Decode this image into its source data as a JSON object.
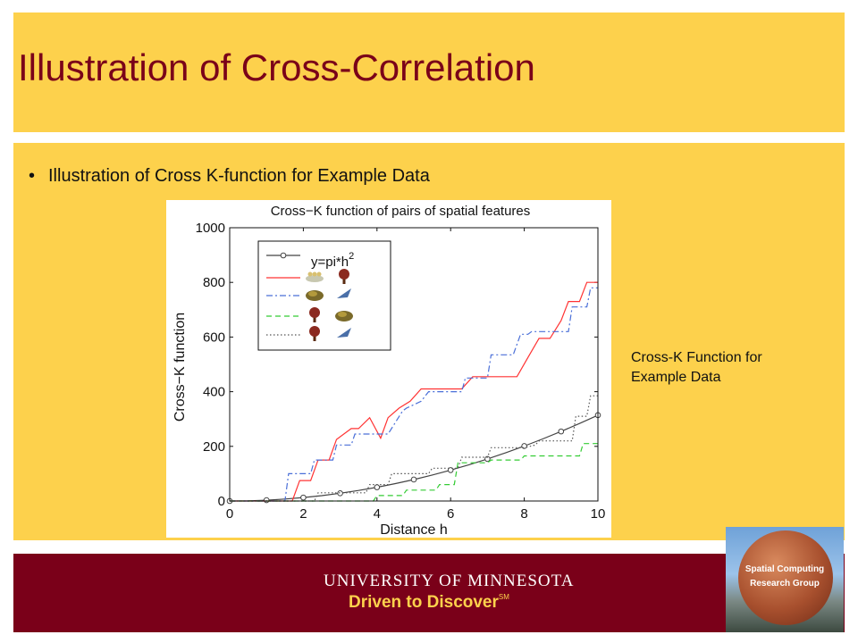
{
  "slide": {
    "title": "Illustration of Cross-Correlation",
    "bullet": "Illustration of Cross K-function for Example Data",
    "side_caption": [
      "Cross-K Function for",
      "Example Data"
    ]
  },
  "footer": {
    "university": "UNIVERSITY OF MINNESOTA",
    "tagline": "Driven to Discover",
    "tagline_mark": "SM",
    "logo_text": [
      "Spatial Computing",
      "Research Group"
    ]
  },
  "colors": {
    "gold": "#fdd14c",
    "maroon": "#7a0019"
  },
  "chart_data": {
    "type": "line",
    "title": "Cross−K function of pairs of spatial features",
    "xlabel": "Distance h",
    "ylabel": "Cross−K function",
    "xlim": [
      0,
      10
    ],
    "ylim": [
      0,
      1000
    ],
    "xticks": [
      0,
      2,
      4,
      6,
      8,
      10
    ],
    "yticks": [
      0,
      200,
      400,
      600,
      800,
      1000
    ],
    "grid": false,
    "legend_position": "top-left",
    "series": [
      {
        "name": "y=pi*h",
        "name_superscript": "2",
        "color": "#444444",
        "style": "solid-circle",
        "x": [
          0,
          0.5,
          1,
          1.5,
          2,
          2.5,
          3,
          3.5,
          4,
          4.5,
          5,
          5.5,
          6,
          6.5,
          7,
          7.5,
          8,
          8.5,
          9,
          9.5,
          10
        ],
        "y": [
          0,
          0.8,
          3.1,
          7.1,
          12.6,
          19.6,
          28.3,
          38.5,
          50.3,
          63.6,
          78.5,
          95.0,
          113.1,
          132.7,
          153.9,
          176.7,
          201.1,
          227.0,
          254.5,
          283.5,
          314.2
        ]
      },
      {
        "legend_icons": [
          "flowers-icon",
          "tree-icon"
        ],
        "color": "#ff3333",
        "style": "solid",
        "x": [
          0,
          1.7,
          1.9,
          2.2,
          2.4,
          2.7,
          2.9,
          3.3,
          3.5,
          3.8,
          4.1,
          4.3,
          4.6,
          4.9,
          5.2,
          5.6,
          6.0,
          6.3,
          6.6,
          7.0,
          7.4,
          7.8,
          8.1,
          8.4,
          8.7,
          9.0,
          9.2,
          9.5,
          9.7,
          10
        ],
        "y": [
          0,
          0,
          75,
          75,
          150,
          150,
          225,
          265,
          265,
          305,
          230,
          305,
          340,
          365,
          410,
          410,
          410,
          410,
          455,
          455,
          455,
          455,
          525,
          595,
          595,
          660,
          730,
          730,
          800,
          800
        ]
      },
      {
        "legend_icons": [
          "frog-icon",
          "bird-icon"
        ],
        "color": "#4a6fd8",
        "style": "dash-dot",
        "x": [
          0,
          1.5,
          1.6,
          2.2,
          2.3,
          2.8,
          2.9,
          3.3,
          3.4,
          4.0,
          4.3,
          4.7,
          4.8,
          5.2,
          5.4,
          6.3,
          6.4,
          7.0,
          7.1,
          7.7,
          7.9,
          8.1,
          8.2,
          9.2,
          9.3,
          9.7,
          9.8,
          10
        ],
        "y": [
          0,
          0,
          100,
          100,
          150,
          150,
          205,
          205,
          245,
          245,
          245,
          330,
          340,
          365,
          400,
          400,
          450,
          450,
          535,
          535,
          610,
          610,
          620,
          620,
          710,
          710,
          780,
          780
        ]
      },
      {
        "legend_icons": [
          "tree-icon",
          "frog-icon"
        ],
        "color": "#33cc33",
        "style": "dashed",
        "x": [
          0,
          3.9,
          4.0,
          4.7,
          4.8,
          5.6,
          5.7,
          6.1,
          6.2,
          7.0,
          7.1,
          7.9,
          8.0,
          8.8,
          9.0,
          9.5,
          9.6,
          10
        ],
        "y": [
          0,
          0,
          20,
          20,
          40,
          40,
          60,
          60,
          140,
          140,
          150,
          150,
          165,
          165,
          165,
          165,
          210,
          210
        ]
      },
      {
        "legend_icons": [
          "tree-icon",
          "bird-icon"
        ],
        "color": "#555555",
        "style": "dotted",
        "x": [
          0,
          2.3,
          2.4,
          3.7,
          3.8,
          4.3,
          4.4,
          5.4,
          5.5,
          6.2,
          6.3,
          7.0,
          7.1,
          8.0,
          8.3,
          8.4,
          9.3,
          9.4,
          9.7,
          9.8,
          10
        ],
        "y": [
          0,
          0,
          30,
          30,
          60,
          60,
          100,
          100,
          120,
          120,
          160,
          160,
          195,
          195,
          205,
          220,
          220,
          310,
          310,
          385,
          385
        ]
      }
    ]
  }
}
